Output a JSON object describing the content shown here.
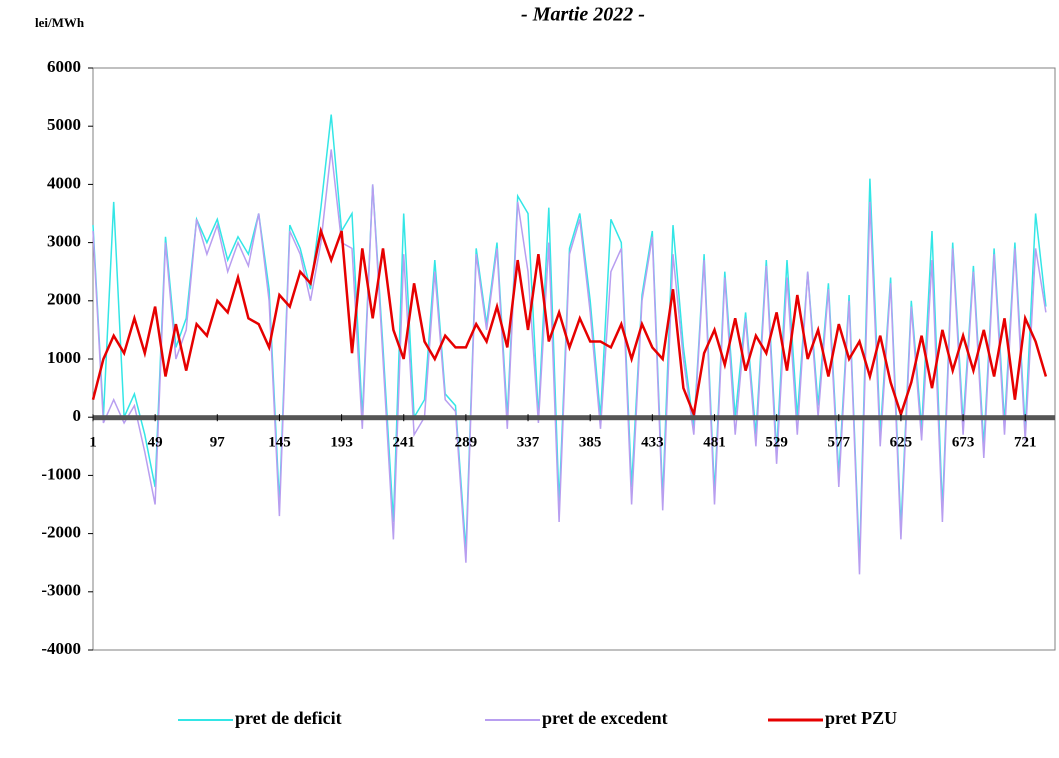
{
  "chart_data": {
    "type": "line",
    "title": "- Martie 2022 -",
    "y_label": "lei/MWh",
    "x": [
      1,
      9,
      17,
      25,
      33,
      41,
      49,
      57,
      65,
      73,
      81,
      89,
      97,
      105,
      113,
      121,
      129,
      137,
      145,
      153,
      161,
      169,
      177,
      185,
      193,
      201,
      209,
      217,
      225,
      233,
      241,
      249,
      257,
      265,
      273,
      281,
      289,
      297,
      305,
      313,
      321,
      329,
      337,
      345,
      353,
      361,
      369,
      377,
      385,
      393,
      401,
      409,
      417,
      425,
      433,
      441,
      449,
      457,
      465,
      473,
      481,
      489,
      497,
      505,
      513,
      521,
      529,
      537,
      545,
      553,
      561,
      569,
      577,
      585,
      593,
      601,
      609,
      617,
      625,
      633,
      641,
      649,
      657,
      665,
      673,
      681,
      689,
      697,
      705,
      713,
      721,
      729,
      737
    ],
    "xlim": [
      1,
      744
    ],
    "xticks": [
      1,
      49,
      97,
      145,
      193,
      241,
      289,
      337,
      385,
      433,
      481,
      529,
      577,
      625,
      673,
      721
    ],
    "ylim": [
      -4000,
      6000
    ],
    "yticks": [
      -4000,
      -3000,
      -2000,
      -1000,
      0,
      1000,
      2000,
      3000,
      4000,
      5000,
      6000
    ],
    "series": [
      {
        "name": "pret de deficit",
        "color": "#33e6e6",
        "values": [
          3300,
          0,
          3700,
          0,
          400,
          -300,
          -1200,
          3100,
          1200,
          1700,
          3400,
          3000,
          3400,
          2700,
          3100,
          2800,
          3500,
          2200,
          -1500,
          3300,
          2900,
          2200,
          3600,
          5200,
          3200,
          3500,
          0,
          4000,
          1200,
          -1800,
          3500,
          0,
          300,
          2700,
          400,
          200,
          -2300,
          2900,
          1600,
          3000,
          0,
          3800,
          3500,
          0,
          3600,
          -1500,
          2900,
          3500,
          2000,
          0,
          3400,
          3000,
          -1200,
          2100,
          3200,
          -1400,
          3300,
          1200,
          -200,
          2800,
          -1300,
          2500,
          0,
          1800,
          -300,
          2700,
          -600,
          2700,
          0,
          2500,
          200,
          2300,
          -1000,
          2100,
          -2500,
          4100,
          -300,
          2400,
          -1900,
          2000,
          -200,
          3200,
          -1600,
          3000,
          -100,
          2600,
          -500,
          2900,
          -100,
          3000,
          -200,
          3500,
          1900
        ]
      },
      {
        "name": "pret de excedent",
        "color": "#b89ef0",
        "values": [
          3200,
          -100,
          300,
          -100,
          200,
          -600,
          -1500,
          3000,
          1000,
          1500,
          3400,
          2800,
          3300,
          2500,
          3000,
          2600,
          3500,
          2000,
          -1700,
          3200,
          2800,
          2000,
          3000,
          4600,
          3000,
          2900,
          -200,
          4000,
          1000,
          -2100,
          2800,
          -300,
          0,
          2500,
          300,
          100,
          -2500,
          2800,
          1500,
          2900,
          -200,
          3700,
          2500,
          -100,
          3000,
          -1800,
          2800,
          3400,
          1800,
          -200,
          2500,
          2900,
          -1500,
          2000,
          3100,
          -1600,
          2800,
          1000,
          -300,
          2700,
          -1500,
          2400,
          -300,
          1700,
          -500,
          2600,
          -800,
          2400,
          -300,
          2500,
          0,
          2200,
          -1200,
          2000,
          -2700,
          3700,
          -500,
          2300,
          -2100,
          1900,
          -400,
          2700,
          -1800,
          2900,
          -300,
          2500,
          -700,
          2800,
          -300,
          2900,
          -400,
          2900,
          1800
        ]
      },
      {
        "name": "pret PZU",
        "color": "#e60000",
        "values": [
          300,
          1000,
          1400,
          1100,
          1700,
          1100,
          1900,
          700,
          1600,
          800,
          1600,
          1400,
          2000,
          1800,
          2400,
          1700,
          1600,
          1200,
          2100,
          1900,
          2500,
          2300,
          3200,
          2700,
          3200,
          1100,
          2900,
          1700,
          2900,
          1500,
          1000,
          2300,
          1300,
          1000,
          1400,
          1200,
          1200,
          1600,
          1300,
          1900,
          1200,
          2700,
          1500,
          2800,
          1300,
          1800,
          1200,
          1700,
          1300,
          1300,
          1200,
          1600,
          1000,
          1600,
          1200,
          1000,
          2200,
          500,
          50,
          1100,
          1500,
          900,
          1700,
          800,
          1400,
          1100,
          1800,
          800,
          2100,
          1000,
          1500,
          700,
          1600,
          1000,
          1300,
          700,
          1400,
          600,
          50,
          600,
          1400,
          500,
          1500,
          800,
          1400,
          800,
          1500,
          700,
          1700,
          300,
          1700,
          1300,
          700
        ]
      }
    ]
  }
}
